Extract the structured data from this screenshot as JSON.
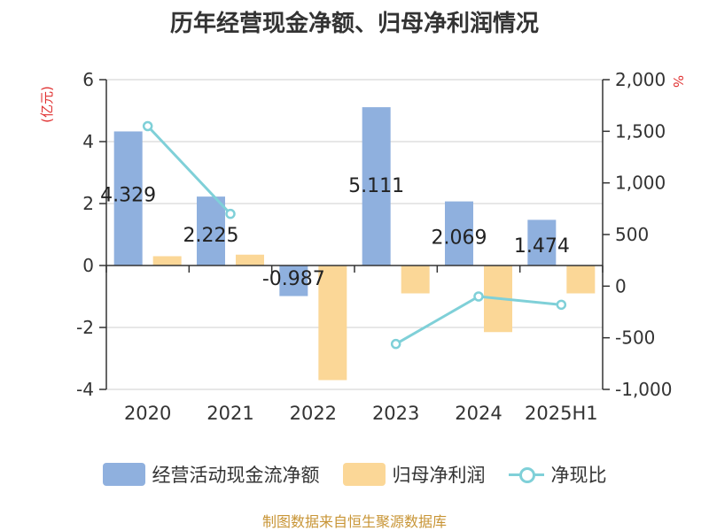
{
  "title": "历年经营现金净额、归母净利润情况",
  "source": "制图数据来自恒生聚源数据库",
  "colors": {
    "cash_flow": "#8fb0de",
    "net_profit": "#fbd797",
    "ratio": "#7fd0d8",
    "axis": "#333333",
    "axis_unit": "#e03131"
  },
  "chart_data": {
    "type": "bar",
    "title": "历年经营现金净额、归母净利润情况",
    "categories": [
      "2020",
      "2021",
      "2022",
      "2023",
      "2024",
      "2025H1"
    ],
    "left_axis": {
      "label": "(亿元)",
      "ylim": [
        -4,
        6
      ],
      "ticks": [
        "6",
        "4",
        "2",
        "0",
        "-2",
        "-4"
      ]
    },
    "right_axis": {
      "label": "%",
      "ylim": [
        -1000,
        2000
      ],
      "ticks": [
        "2,000",
        "1,500",
        "1,000",
        "500",
        "0",
        "-500",
        "-1,000"
      ]
    },
    "series": [
      {
        "name": "经营活动现金流净额",
        "type": "bar",
        "axis": "left",
        "values": [
          4.329,
          2.225,
          -0.987,
          5.111,
          2.069,
          1.474
        ],
        "labels": [
          "4.329",
          "2.225",
          "-0.987",
          "5.111",
          "2.069",
          "1.474"
        ]
      },
      {
        "name": "归母净利润",
        "type": "bar",
        "axis": "left",
        "values": [
          0.3,
          0.35,
          -3.7,
          -0.9,
          -2.15,
          -0.9
        ]
      },
      {
        "name": "净现比",
        "type": "line",
        "axis": "right",
        "values": [
          1550,
          700,
          null,
          -560,
          -100,
          -180
        ]
      }
    ],
    "legend_position": "bottom"
  }
}
